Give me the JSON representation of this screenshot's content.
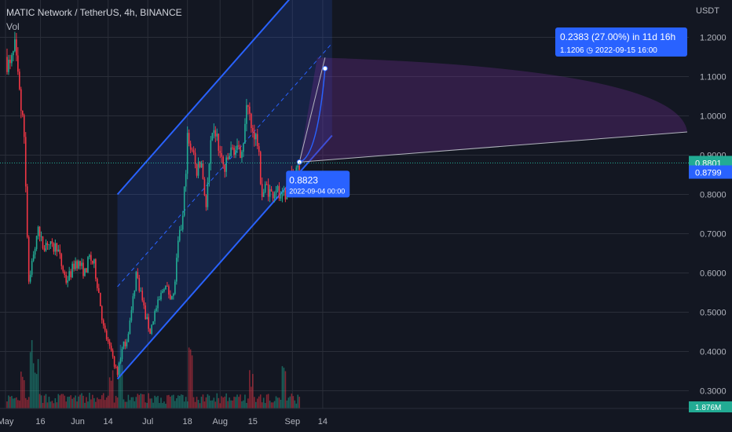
{
  "header": {
    "title": "MATIC Network / TetherUS, 4h, BINANCE",
    "volume_label": "Vol",
    "currency": "USDT"
  },
  "chart_data": {
    "type": "candlestick",
    "symbol": "MATIC Network / TetherUS",
    "interval": "4h",
    "exchange": "BINANCE",
    "y_axis": {
      "ylim": [
        0.255,
        1.295
      ],
      "ticks": [
        0.3,
        0.4,
        0.5,
        0.6,
        0.7,
        0.8,
        0.9,
        1.0,
        1.1,
        1.2
      ],
      "tick_labels": [
        "0.3000",
        "0.4000",
        "0.5000",
        "0.6000",
        "0.7000",
        "0.8000",
        "0.9000",
        "1.0000",
        "1.1000",
        "1.2000"
      ]
    },
    "x_axis": {
      "tick_labels": [
        "May",
        "16",
        "Jun",
        "14",
        "Jul",
        "18",
        "Aug",
        "15",
        "Sep",
        "14"
      ]
    },
    "price_series": [
      {
        "date": "2022-05-01",
        "close": 1.15
      },
      {
        "date": "2022-05-03",
        "close": 1.12
      },
      {
        "date": "2022-05-05",
        "close": 1.17
      },
      {
        "date": "2022-05-07",
        "close": 1.05
      },
      {
        "date": "2022-05-09",
        "close": 0.95
      },
      {
        "date": "2022-05-11",
        "close": 0.58
      },
      {
        "date": "2022-05-13",
        "close": 0.65
      },
      {
        "date": "2022-05-15",
        "close": 0.7
      },
      {
        "date": "2022-05-17",
        "close": 0.67
      },
      {
        "date": "2022-05-19",
        "close": 0.68
      },
      {
        "date": "2022-05-21",
        "close": 0.66
      },
      {
        "date": "2022-05-23",
        "close": 0.67
      },
      {
        "date": "2022-05-25",
        "close": 0.62
      },
      {
        "date": "2022-05-27",
        "close": 0.58
      },
      {
        "date": "2022-05-29",
        "close": 0.6
      },
      {
        "date": "2022-05-31",
        "close": 0.63
      },
      {
        "date": "2022-06-02",
        "close": 0.62
      },
      {
        "date": "2022-06-04",
        "close": 0.6
      },
      {
        "date": "2022-06-06",
        "close": 0.64
      },
      {
        "date": "2022-06-08",
        "close": 0.62
      },
      {
        "date": "2022-06-10",
        "close": 0.55
      },
      {
        "date": "2022-06-12",
        "close": 0.46
      },
      {
        "date": "2022-06-14",
        "close": 0.42
      },
      {
        "date": "2022-06-16",
        "close": 0.38
      },
      {
        "date": "2022-06-18",
        "close": 0.34
      },
      {
        "date": "2022-06-20",
        "close": 0.41
      },
      {
        "date": "2022-06-22",
        "close": 0.43
      },
      {
        "date": "2022-06-24",
        "close": 0.5
      },
      {
        "date": "2022-06-26",
        "close": 0.6
      },
      {
        "date": "2022-06-28",
        "close": 0.55
      },
      {
        "date": "2022-06-30",
        "close": 0.49
      },
      {
        "date": "2022-07-02",
        "close": 0.45
      },
      {
        "date": "2022-07-04",
        "close": 0.5
      },
      {
        "date": "2022-07-06",
        "close": 0.53
      },
      {
        "date": "2022-07-08",
        "close": 0.57
      },
      {
        "date": "2022-07-10",
        "close": 0.55
      },
      {
        "date": "2022-07-12",
        "close": 0.54
      },
      {
        "date": "2022-07-14",
        "close": 0.67
      },
      {
        "date": "2022-07-16",
        "close": 0.74
      },
      {
        "date": "2022-07-18",
        "close": 0.94
      },
      {
        "date": "2022-07-20",
        "close": 0.9
      },
      {
        "date": "2022-07-22",
        "close": 0.86
      },
      {
        "date": "2022-07-24",
        "close": 0.88
      },
      {
        "date": "2022-07-26",
        "close": 0.77
      },
      {
        "date": "2022-07-28",
        "close": 0.92
      },
      {
        "date": "2022-07-30",
        "close": 0.96
      },
      {
        "date": "2022-08-01",
        "close": 0.9
      },
      {
        "date": "2022-08-03",
        "close": 0.86
      },
      {
        "date": "2022-08-05",
        "close": 0.9
      },
      {
        "date": "2022-08-07",
        "close": 0.92
      },
      {
        "date": "2022-08-09",
        "close": 0.9
      },
      {
        "date": "2022-08-11",
        "close": 0.94
      },
      {
        "date": "2022-08-13",
        "close": 1.04
      },
      {
        "date": "2022-08-15",
        "close": 0.97
      },
      {
        "date": "2022-08-17",
        "close": 0.93
      },
      {
        "date": "2022-08-19",
        "close": 0.8
      },
      {
        "date": "2022-08-21",
        "close": 0.82
      },
      {
        "date": "2022-08-23",
        "close": 0.8
      },
      {
        "date": "2022-08-25",
        "close": 0.82
      },
      {
        "date": "2022-08-27",
        "close": 0.78
      },
      {
        "date": "2022-08-29",
        "close": 0.8
      },
      {
        "date": "2022-08-31",
        "close": 0.84
      },
      {
        "date": "2022-09-02",
        "close": 0.87
      },
      {
        "date": "2022-09-04",
        "close": 0.8823
      }
    ],
    "volume_series": [
      {
        "date": "2022-05-07",
        "volume": "medium"
      },
      {
        "date": "2022-05-11",
        "volume": "high"
      },
      {
        "date": "2022-05-13",
        "volume": "high"
      },
      {
        "date": "2022-06-14",
        "volume": "medium"
      },
      {
        "date": "2022-06-18",
        "volume": "high"
      },
      {
        "date": "2022-07-18",
        "volume": "high"
      },
      {
        "date": "2022-08-13",
        "volume": "medium"
      },
      {
        "date": "2022-08-27",
        "volume": "medium"
      },
      {
        "date": "2022-09-02",
        "volume": "low"
      }
    ],
    "last_price": {
      "label": "0.8801",
      "value": 0.8801,
      "color": "#22ab94"
    },
    "secondary_price": {
      "label": "0.8799",
      "value": 0.8799,
      "color": "#2962ff"
    },
    "volume_last": {
      "label": "1.876M",
      "color": "#22ab94"
    },
    "channel": {
      "lower_start": {
        "date": "2022-06-18",
        "price": 0.33
      },
      "lower_end": {
        "date": "2022-09-18",
        "price": 0.95
      },
      "upper_start": {
        "date": "2022-06-18",
        "price": 0.8
      },
      "upper_end": {
        "date": "2022-09-18",
        "price": 1.42
      },
      "color": "#2962ff"
    },
    "projection": {
      "start": {
        "date": "2022-09-04",
        "price": 0.8823
      },
      "end": {
        "date": "2022-09-15",
        "price": 1.1206
      },
      "start_label": "0.8823",
      "start_date_label": "2022-09-04 00:00",
      "change_label": "0.2383 (27.00%) in 11d 16h",
      "end_label": "1.1206",
      "end_date_label": "2022-09-15  16:00",
      "color": "#2962ff"
    },
    "colors": {
      "up": "#22ab94",
      "down": "#f23645",
      "background": "#131722",
      "grid": "#2a2e39"
    }
  }
}
